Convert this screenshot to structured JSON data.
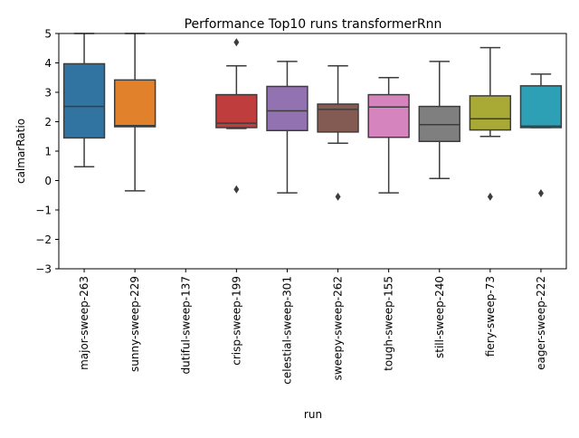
{
  "chart_data": {
    "type": "box",
    "title": "Performance Top10 runs transformerRnn",
    "xlabel": "run",
    "ylabel": "calmarRatio",
    "ylim": [
      -3,
      5
    ],
    "yticks": [
      {
        "value": -3,
        "label": "−3"
      },
      {
        "value": -2,
        "label": "−2"
      },
      {
        "value": -1,
        "label": "−1"
      },
      {
        "value": 0,
        "label": "0"
      },
      {
        "value": 1,
        "label": "1"
      },
      {
        "value": 2,
        "label": "2"
      },
      {
        "value": 3,
        "label": "3"
      },
      {
        "value": 4,
        "label": "4"
      },
      {
        "value": 5,
        "label": "5"
      }
    ],
    "grid": false,
    "categories": [
      "major-sweep-263",
      "sunny-sweep-229",
      "dutiful-sweep-137",
      "crisp-sweep-199",
      "celestial-sweep-301",
      "sweepy-sweep-262",
      "tough-sweep-155",
      "still-sweep-240",
      "fiery-sweep-73",
      "eager-sweep-222"
    ],
    "boxes": [
      {
        "category": "major-sweep-263",
        "whisker_low": 0.47,
        "q1": 1.45,
        "median": 2.52,
        "q3": 3.97,
        "whisker_high": 5.0,
        "outliers": [],
        "color": "#3274a1"
      },
      {
        "category": "sunny-sweep-229",
        "whisker_low": -0.35,
        "q1": 1.83,
        "median": 1.87,
        "q3": 3.42,
        "whisker_high": 5.0,
        "outliers": [],
        "color": "#e1812c"
      },
      {
        "category": "dutiful-sweep-137",
        "empty": true
      },
      {
        "category": "crisp-sweep-199",
        "whisker_low": 1.77,
        "q1": 1.8,
        "median": 1.95,
        "q3": 2.92,
        "whisker_high": 3.9,
        "outliers": [
          -0.3,
          4.7
        ],
        "color": "#c03d3e"
      },
      {
        "category": "celestial-sweep-301",
        "whisker_low": -0.42,
        "q1": 1.7,
        "median": 2.37,
        "q3": 3.2,
        "whisker_high": 4.05,
        "outliers": [],
        "color": "#9372b2"
      },
      {
        "category": "sweepy-sweep-262",
        "whisker_low": 1.27,
        "q1": 1.65,
        "median": 2.42,
        "q3": 2.6,
        "whisker_high": 3.9,
        "outliers": [
          -0.55
        ],
        "color": "#845b53"
      },
      {
        "category": "tough-sweep-155",
        "whisker_low": -0.42,
        "q1": 1.47,
        "median": 2.5,
        "q3": 2.92,
        "whisker_high": 3.5,
        "outliers": [],
        "color": "#d684bd"
      },
      {
        "category": "still-sweep-240",
        "whisker_low": 0.07,
        "q1": 1.33,
        "median": 1.9,
        "q3": 2.52,
        "whisker_high": 4.05,
        "outliers": [],
        "color": "#7f7f7f"
      },
      {
        "category": "fiery-sweep-73",
        "whisker_low": 1.5,
        "q1": 1.72,
        "median": 2.1,
        "q3": 2.88,
        "whisker_high": 4.52,
        "outliers": [
          -0.55
        ],
        "color": "#a9aa35"
      },
      {
        "category": "eager-sweep-222",
        "whisker_low": 1.8,
        "q1": 1.8,
        "median": 1.85,
        "q3": 3.22,
        "whisker_high": 3.62,
        "outliers": [
          -0.43
        ],
        "color": "#2ea0b5"
      }
    ],
    "line_color": "#3d3d3d"
  }
}
